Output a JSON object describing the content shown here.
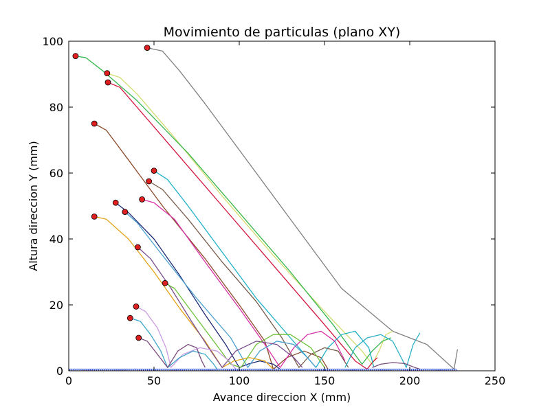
{
  "chart_data": {
    "type": "line",
    "title": "Movimiento de particulas (plano XY)",
    "xlabel": "Avance direccion X (mm)",
    "ylabel": "Altura direccion Y (mm)",
    "xlim": [
      0,
      250
    ],
    "ylim": [
      0,
      100
    ],
    "xticks": [
      0,
      50,
      100,
      150,
      200,
      250
    ],
    "yticks": [
      0,
      20,
      40,
      60,
      80,
      100
    ],
    "grid": false,
    "legend": "none",
    "start_markers": {
      "color": "#dd1f1f",
      "edge": "#000000",
      "points": [
        [
          4,
          95.5
        ],
        [
          46,
          98
        ],
        [
          22.5,
          90.3
        ],
        [
          23,
          87.5
        ],
        [
          15,
          75
        ],
        [
          50,
          60.7
        ],
        [
          47,
          57.5
        ],
        [
          43,
          52
        ],
        [
          27.5,
          51
        ],
        [
          33,
          48.2
        ],
        [
          15,
          46.8
        ],
        [
          40.5,
          37.5
        ],
        [
          56.5,
          26.6
        ],
        [
          39.5,
          19.5
        ],
        [
          36,
          16
        ],
        [
          41,
          10
        ]
      ]
    },
    "series": [
      {
        "color": "#808080",
        "points": [
          [
            46,
            98
          ],
          [
            55,
            97
          ],
          [
            65,
            91
          ],
          [
            80,
            81
          ],
          [
            100,
            67
          ],
          [
            130,
            46
          ],
          [
            160,
            25
          ],
          [
            190,
            12
          ],
          [
            210,
            8
          ],
          [
            226,
            0.5
          ],
          [
            228,
            6.5
          ]
        ]
      },
      {
        "color": "#d2dc6e",
        "points": [
          [
            22.5,
            90.3
          ],
          [
            30,
            89
          ],
          [
            40,
            84
          ],
          [
            60,
            72
          ],
          [
            90,
            53
          ],
          [
            120,
            35
          ],
          [
            150,
            18
          ],
          [
            172,
            6
          ],
          [
            178,
            2
          ],
          [
            182,
            6
          ],
          [
            186,
            11
          ],
          [
            190,
            12
          ]
        ]
      },
      {
        "color": "#35b54b",
        "points": [
          [
            4,
            95.5
          ],
          [
            10,
            95
          ],
          [
            20,
            91
          ],
          [
            40,
            82
          ],
          [
            70,
            66
          ],
          [
            100,
            48
          ],
          [
            130,
            30
          ],
          [
            155,
            14
          ],
          [
            172,
            2
          ],
          [
            178,
            6
          ],
          [
            184,
            9
          ],
          [
            189,
            10
          ]
        ]
      },
      {
        "color": "#d2133c",
        "points": [
          [
            23,
            87.5
          ],
          [
            30,
            86
          ],
          [
            40,
            80
          ],
          [
            60,
            68
          ],
          [
            90,
            50
          ],
          [
            120,
            32
          ],
          [
            150,
            14
          ],
          [
            168,
            3
          ],
          [
            175,
            0.5
          ],
          [
            178,
            2.5
          ],
          [
            181,
            4
          ]
        ]
      },
      {
        "color": "#8b4a2b",
        "points": [
          [
            15,
            75
          ],
          [
            22,
            73
          ],
          [
            35,
            64
          ],
          [
            55,
            50
          ],
          [
            80,
            34
          ],
          [
            100,
            20
          ],
          [
            115,
            9
          ],
          [
            120,
            0.5
          ],
          [
            128,
            4
          ],
          [
            138,
            6
          ],
          [
            148,
            4
          ],
          [
            152,
            0.5
          ]
        ]
      },
      {
        "color": "#1fb1c7",
        "points": [
          [
            50,
            60.7
          ],
          [
            58,
            58
          ],
          [
            70,
            50
          ],
          [
            90,
            36
          ],
          [
            110,
            22
          ],
          [
            130,
            10
          ],
          [
            145,
            1
          ],
          [
            152,
            7
          ],
          [
            160,
            11
          ],
          [
            168,
            12
          ],
          [
            176,
            7
          ],
          [
            179,
            1
          ]
        ]
      },
      {
        "color": "#765a4a",
        "points": [
          [
            47,
            57.5
          ],
          [
            55,
            55
          ],
          [
            70,
            46
          ],
          [
            90,
            33
          ],
          [
            110,
            21
          ],
          [
            125,
            10
          ],
          [
            135,
            1
          ],
          [
            142,
            5
          ],
          [
            150,
            7
          ],
          [
            158,
            6
          ],
          [
            164,
            1
          ]
        ]
      },
      {
        "color": "#d92fa6",
        "points": [
          [
            43,
            52
          ],
          [
            50,
            51
          ],
          [
            62,
            46
          ],
          [
            80,
            33
          ],
          [
            100,
            19
          ],
          [
            115,
            8
          ],
          [
            124,
            1
          ],
          [
            132,
            7
          ],
          [
            140,
            11
          ],
          [
            148,
            12
          ],
          [
            156,
            9
          ],
          [
            162,
            3
          ]
        ]
      },
      {
        "color": "#1f2a75",
        "points": [
          [
            27.5,
            51
          ],
          [
            35,
            48
          ],
          [
            50,
            40
          ],
          [
            65,
            29
          ],
          [
            80,
            17
          ],
          [
            92,
            8
          ],
          [
            100,
            1
          ],
          [
            105,
            2
          ],
          [
            112,
            3
          ],
          [
            120,
            2
          ],
          [
            124,
            0.5
          ]
        ]
      },
      {
        "color": "#4a9fd0",
        "points": [
          [
            33,
            48.2
          ],
          [
            40,
            45
          ],
          [
            55,
            35
          ],
          [
            75,
            22
          ],
          [
            95,
            10
          ],
          [
            105,
            1
          ],
          [
            112,
            6
          ],
          [
            122,
            9
          ],
          [
            132,
            8
          ],
          [
            140,
            4
          ],
          [
            145,
            1
          ]
        ]
      },
      {
        "color": "#e3a317",
        "points": [
          [
            15,
            46.8
          ],
          [
            22,
            46
          ],
          [
            35,
            40
          ],
          [
            50,
            30
          ],
          [
            65,
            19
          ],
          [
            80,
            9
          ],
          [
            90,
            1
          ],
          [
            97,
            3
          ],
          [
            106,
            4
          ],
          [
            115,
            3
          ],
          [
            120,
            0.5
          ]
        ]
      },
      {
        "color": "#7a4d8c",
        "points": [
          [
            40.5,
            37.5
          ],
          [
            48,
            34
          ],
          [
            60,
            25
          ],
          [
            72,
            15
          ],
          [
            82,
            7
          ],
          [
            90,
            1
          ],
          [
            98,
            6
          ],
          [
            110,
            9
          ],
          [
            122,
            8
          ],
          [
            132,
            4
          ],
          [
            137,
            1
          ]
        ]
      },
      {
        "color": "#6fc23a",
        "points": [
          [
            56.5,
            26.6
          ],
          [
            62,
            25
          ],
          [
            72,
            18
          ],
          [
            85,
            9
          ],
          [
            95,
            2
          ],
          [
            101,
            1
          ],
          [
            110,
            8
          ],
          [
            120,
            11
          ],
          [
            130,
            11
          ],
          [
            142,
            7
          ],
          [
            150,
            1
          ]
        ]
      },
      {
        "color": "#c99be0",
        "points": [
          [
            39.5,
            19.5
          ],
          [
            45,
            18
          ],
          [
            52,
            13
          ],
          [
            57,
            7
          ],
          [
            60,
            1
          ],
          [
            67,
            5
          ],
          [
            77,
            7
          ],
          [
            87,
            6
          ],
          [
            94,
            3
          ],
          [
            98,
            0.5
          ]
        ]
      },
      {
        "color": "#3ca5c8",
        "points": [
          [
            36,
            16
          ],
          [
            42,
            15
          ],
          [
            48,
            11
          ],
          [
            54,
            6
          ],
          [
            58,
            1
          ],
          [
            65,
            4
          ],
          [
            73,
            6
          ],
          [
            80,
            5
          ],
          [
            85,
            2
          ],
          [
            87,
            0.5
          ]
        ]
      },
      {
        "color": "#7b4a7e",
        "points": [
          [
            41,
            10
          ],
          [
            46,
            9
          ],
          [
            52,
            5
          ],
          [
            58,
            1
          ],
          [
            64,
            6
          ],
          [
            70,
            8
          ],
          [
            75,
            7
          ],
          [
            78,
            3
          ],
          [
            80,
            1
          ]
        ]
      },
      {
        "color": "#2bb0c4",
        "points": [
          [
            162,
            1
          ],
          [
            168,
            7
          ],
          [
            175,
            10
          ],
          [
            183,
            11
          ],
          [
            190,
            9
          ],
          [
            195,
            4
          ],
          [
            198,
            1
          ],
          [
            202,
            8
          ],
          [
            206,
            11.5
          ]
        ]
      },
      {
        "color": "#7a4a7a",
        "points": [
          [
            178,
            1
          ],
          [
            183,
            2
          ],
          [
            190,
            2.5
          ],
          [
            197,
            2.2
          ],
          [
            203,
            1
          ],
          [
            206,
            0.5
          ]
        ]
      }
    ],
    "floor_markers": {
      "color": "#1f3fd6",
      "from": 0,
      "to": 227,
      "step": 1.2,
      "y": 0.2
    }
  }
}
